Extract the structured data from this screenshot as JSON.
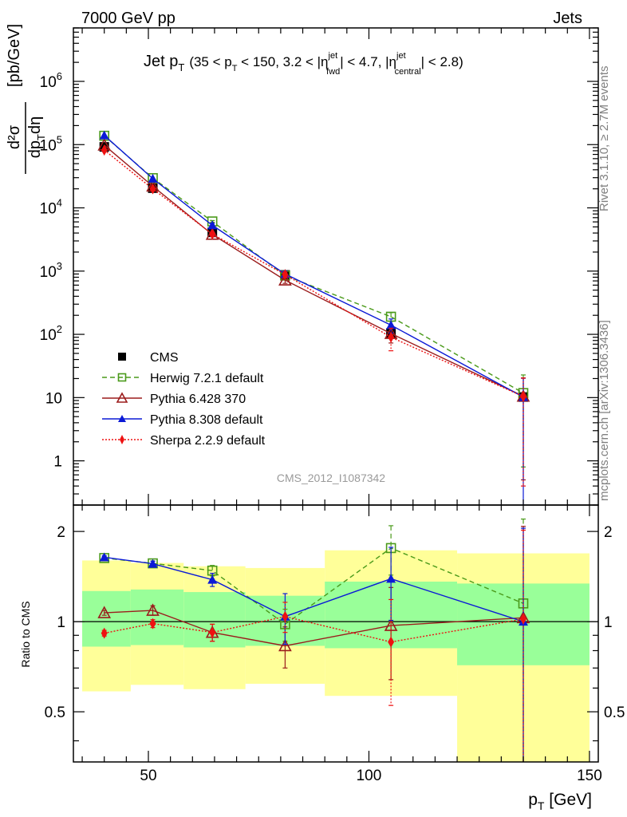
{
  "header": {
    "left": "7000 GeV pp",
    "right": "Jets",
    "side_top": "Rivet 3.1.10, ≥ 2.7M events",
    "side_bottom": "mcplots.cern.ch [arXiv:1306.3436]",
    "watermark": "CMS_2012_I1087342"
  },
  "chart_data": [
    {
      "type": "line",
      "title": {
        "main": "Jet p",
        "main_sub": "T",
        "cuts_a": "(35 < p",
        "cuts_b": " < 150, 3.2 < |η",
        "fwd_sup": "jet",
        "fwd_sub": "fwd",
        "cuts_c": "| < 4.7, |η",
        "cen_sup": "jet",
        "cen_sub": "central",
        "cuts_d": "| < 2.8)"
      },
      "ylabel": {
        "num": "d²σ",
        "den_a": "dp",
        "den_sub": "T",
        "den_b": "dη",
        "unit": "[pb/GeV]"
      },
      "yscale": "log",
      "ylim": [
        0.2,
        7000000
      ],
      "xlim": [
        33,
        152
      ],
      "y_ticks": [
        {
          "v": 1,
          "label": "1"
        },
        {
          "v": 10,
          "label": "10"
        },
        {
          "v": 100,
          "label": "10",
          "exp": "2"
        },
        {
          "v": 1000,
          "label": "10",
          "exp": "3"
        },
        {
          "v": 10000,
          "label": "10",
          "exp": "4"
        },
        {
          "v": 100000,
          "label": "10",
          "exp": "5"
        },
        {
          "v": 1000000,
          "label": "10",
          "exp": "6"
        }
      ],
      "legend_placement": "lower-left",
      "series": [
        {
          "name": "CMS",
          "style": "data",
          "color": "#000000",
          "x": [
            40,
            51,
            64.5,
            81,
            105,
            135
          ],
          "y": [
            92000,
            20500,
            4100,
            870,
            105,
            10.2
          ],
          "err": [
            0,
            0,
            0,
            0,
            0,
            0
          ]
        },
        {
          "name": "Herwig 7.2.1 default",
          "style": "open-square",
          "color": "#4a9a1a",
          "dash": "6,4",
          "x": [
            40,
            51,
            64.5,
            81,
            105,
            135
          ],
          "y": [
            138000,
            29500,
            6100,
            850,
            190,
            11.8
          ],
          "err": [
            0,
            0,
            200,
            0,
            30,
            11
          ]
        },
        {
          "name": "Pythia 6.428 370",
          "style": "open-triangle",
          "color": "#9b1c1c",
          "dash": "",
          "x": [
            40,
            51,
            64.5,
            81,
            105,
            135
          ],
          "y": [
            98000,
            22000,
            3800,
            720,
            103,
            10.5
          ],
          "err": [
            0,
            0,
            300,
            80,
            30,
            10
          ]
        },
        {
          "name": "Pythia 8.308 default",
          "style": "filled-triangle",
          "color": "#0b1ad6",
          "dash": "",
          "x": [
            40,
            51,
            64.5,
            81,
            105,
            135
          ],
          "y": [
            140000,
            29000,
            5300,
            900,
            140,
            10.2
          ],
          "err": [
            0,
            0,
            400,
            100,
            35,
            10
          ]
        },
        {
          "name": "Sherpa 2.2.9 default",
          "style": "filled-diamond",
          "color": "#ee1111",
          "dash": "2,2",
          "x": [
            40,
            51,
            64.5,
            81,
            105,
            135
          ],
          "y": [
            82000,
            20000,
            3850,
            880,
            90,
            10.4
          ],
          "err": [
            0,
            0,
            250,
            90,
            35,
            10
          ]
        }
      ]
    },
    {
      "type": "line",
      "ylabel": "Ratio to CMS",
      "xlabel": {
        "main": "p",
        "sub": "T",
        "unit": " [GeV]"
      },
      "yscale": "log",
      "ylim": [
        0.34,
        2.45
      ],
      "xlim": [
        33,
        152
      ],
      "x_ticks": [
        {
          "v": 50,
          "label": "50"
        },
        {
          "v": 100,
          "label": "100"
        },
        {
          "v": 150,
          "label": "150"
        }
      ],
      "y_ticks": [
        {
          "v": 0.5,
          "label": "0.5"
        },
        {
          "v": 1,
          "label": "1"
        },
        {
          "v": 2,
          "label": "2"
        }
      ],
      "bands": [
        {
          "x0": 35,
          "x1": 46,
          "y1_lo": 0.825,
          "y1_hi": 1.265,
          "y2_lo": 0.585,
          "y2_hi": 1.6
        },
        {
          "x0": 46,
          "x1": 58,
          "y1_lo": 0.835,
          "y1_hi": 1.28,
          "y2_lo": 0.615,
          "y2_hi": 1.57
        },
        {
          "x0": 58,
          "x1": 72,
          "y1_lo": 0.82,
          "y1_hi": 1.255,
          "y2_lo": 0.595,
          "y2_hi": 1.53
        },
        {
          "x0": 72,
          "x1": 90,
          "y1_lo": 0.83,
          "y1_hi": 1.22,
          "y2_lo": 0.62,
          "y2_hi": 1.51
        },
        {
          "x0": 90,
          "x1": 120,
          "y1_lo": 0.815,
          "y1_hi": 1.36,
          "y2_lo": 0.565,
          "y2_hi": 1.73
        },
        {
          "x0": 120,
          "x1": 150,
          "y1_lo": 0.715,
          "y1_hi": 1.34,
          "y2_lo": 0.34,
          "y2_hi": 1.69
        }
      ],
      "series": [
        {
          "name": "Herwig 7.2.1 default",
          "style": "open-square",
          "color": "#4a9a1a",
          "dash": "6,4",
          "x": [
            40,
            51,
            64.5,
            81,
            105,
            135
          ],
          "y": [
            1.63,
            1.565,
            1.48,
            0.98,
            1.76,
            1.15
          ],
          "err": [
            0.02,
            0.03,
            0.06,
            0.12,
            0.33,
            1.05
          ]
        },
        {
          "name": "Pythia 6.428 370",
          "style": "open-triangle",
          "color": "#9b1c1c",
          "dash": "",
          "x": [
            40,
            51,
            64.5,
            81,
            105,
            135
          ],
          "y": [
            1.07,
            1.09,
            0.92,
            0.83,
            0.97,
            1.03
          ],
          "err": [
            0.02,
            0.04,
            0.06,
            0.13,
            0.33,
            1.05
          ]
        },
        {
          "name": "Pythia 8.308 default",
          "style": "filled-triangle",
          "color": "#0b1ad6",
          "dash": "",
          "x": [
            40,
            51,
            64.5,
            81,
            105,
            135
          ],
          "y": [
            1.64,
            1.56,
            1.38,
            1.04,
            1.39,
            1.0
          ],
          "err": [
            0.02,
            0.03,
            0.07,
            0.2,
            0.38,
            1.05
          ]
        },
        {
          "name": "Sherpa 2.2.9 default",
          "style": "filled-diamond",
          "color": "#ee1111",
          "dash": "2,2",
          "x": [
            40,
            51,
            64.5,
            81,
            105,
            135
          ],
          "y": [
            0.915,
            0.985,
            0.92,
            1.04,
            0.855,
            1.02
          ],
          "err": [
            0.02,
            0.03,
            0.06,
            0.12,
            0.33,
            1.0
          ]
        }
      ]
    }
  ]
}
